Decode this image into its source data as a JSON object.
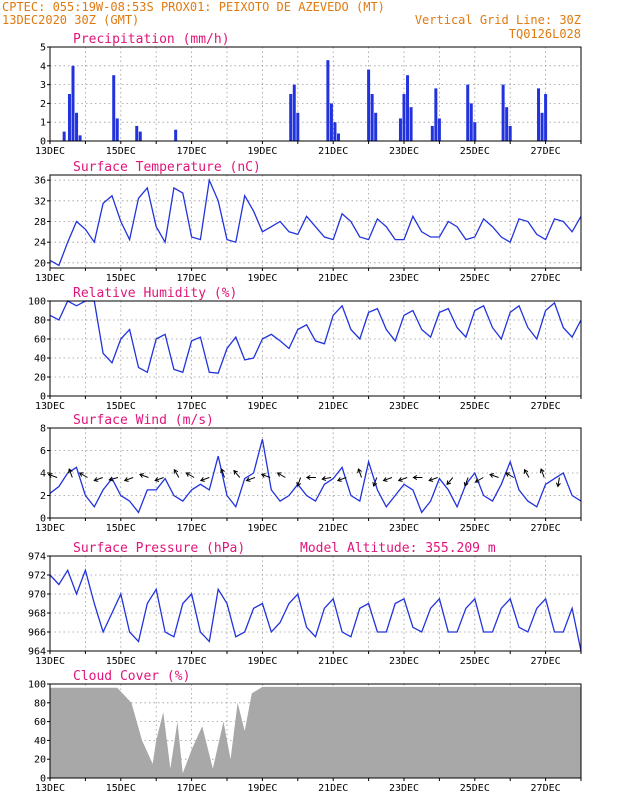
{
  "header": {
    "line1_left": "CPTEC:  055:19W-08:53S  PROX01: PEIXOTO DE AZEVEDO (MT)",
    "line2_left": "13DEC2020 30Z (GMT)",
    "line2_right": "Vertical Grid Line: 30Z",
    "line3_right": "TQ0126L028"
  },
  "colors": {
    "header": "#e07a10",
    "panel_title": "#e0157a",
    "series": "#2233dd",
    "cloud": "#a8a8a8",
    "grid": "#9a9a9a"
  },
  "x_axis": {
    "labels": [
      "13DEC",
      "15DEC",
      "17DEC",
      "19DEC",
      "21DEC",
      "23DEC",
      "25DEC",
      "27DEC"
    ],
    "day_ticks": 15
  },
  "chart_data": [
    {
      "id": "precip",
      "type": "bar",
      "title": "Precipitation (mm/h)",
      "ylim": [
        0,
        5
      ],
      "yticks": [
        "0",
        "1",
        "2",
        "3",
        "4",
        "5"
      ],
      "x": [
        0.4,
        0.55,
        0.65,
        0.75,
        0.85,
        1.8,
        1.9,
        2.45,
        2.55,
        3.55,
        6.8,
        6.9,
        7.0,
        7.85,
        7.95,
        8.05,
        8.15,
        9.0,
        9.1,
        9.2,
        9.9,
        10.0,
        10.1,
        10.2,
        10.8,
        10.9,
        11.0,
        11.8,
        11.9,
        12.0,
        12.8,
        12.9,
        13.0,
        13.8,
        13.9,
        14.0
      ],
      "values": [
        0.5,
        2.5,
        4.0,
        1.5,
        0.3,
        3.5,
        1.2,
        0.8,
        0.5,
        0.6,
        2.5,
        3.0,
        1.5,
        4.3,
        2.0,
        1.0,
        0.4,
        3.8,
        2.5,
        1.5,
        1.2,
        2.5,
        3.5,
        1.8,
        0.8,
        2.8,
        1.2,
        3.0,
        2.0,
        1.0,
        3.0,
        1.8,
        0.8,
        2.8,
        1.5,
        2.5
      ]
    },
    {
      "id": "temp",
      "type": "line",
      "title": "Surface Temperature (nC)",
      "ylim": [
        19,
        37
      ],
      "yticks": [
        "20",
        "24",
        "28",
        "32",
        "36"
      ],
      "x": [
        0,
        0.25,
        0.5,
        0.75,
        1.0,
        1.25,
        1.5,
        1.75,
        2.0,
        2.25,
        2.5,
        2.75,
        3.0,
        3.25,
        3.5,
        3.75,
        4.0,
        4.25,
        4.5,
        4.75,
        5.0,
        5.25,
        5.5,
        5.75,
        6.0,
        6.25,
        6.5,
        6.75,
        7.0,
        7.25,
        7.5,
        7.75,
        8.0,
        8.25,
        8.5,
        8.75,
        9.0,
        9.25,
        9.5,
        9.75,
        10.0,
        10.25,
        10.5,
        10.75,
        11.0,
        11.25,
        11.5,
        11.75,
        12.0,
        12.25,
        12.5,
        12.75,
        13.0,
        13.25,
        13.5,
        13.75,
        14.0,
        14.25,
        14.5,
        14.75,
        15.0
      ],
      "values": [
        20.5,
        19.5,
        24.0,
        28.0,
        26.5,
        24.0,
        31.5,
        33.0,
        28.0,
        24.5,
        32.5,
        34.5,
        27.0,
        24.0,
        34.5,
        33.5,
        25.0,
        24.5,
        36.0,
        32.0,
        24.5,
        24.0,
        33.0,
        30.0,
        26.0,
        27.0,
        28.0,
        26.0,
        25.5,
        29.0,
        27.0,
        25.0,
        24.5,
        29.5,
        28.0,
        25.0,
        24.5,
        28.5,
        27.0,
        24.5,
        24.5,
        29.0,
        26.0,
        25.0,
        25.0,
        28.0,
        27.0,
        24.5,
        25.0,
        28.5,
        27.0,
        25.0,
        24.0,
        28.5,
        28.0,
        25.5,
        24.5,
        28.5,
        28.0,
        26.0,
        29.0
      ]
    },
    {
      "id": "rh",
      "type": "line",
      "title": "Relative Humidity (%)",
      "ylim": [
        0,
        100
      ],
      "yticks": [
        "0",
        "20",
        "40",
        "60",
        "80",
        "100"
      ],
      "x": [
        0,
        0.25,
        0.5,
        0.75,
        1.0,
        1.25,
        1.5,
        1.75,
        2.0,
        2.25,
        2.5,
        2.75,
        3.0,
        3.25,
        3.5,
        3.75,
        4.0,
        4.25,
        4.5,
        4.75,
        5.0,
        5.25,
        5.5,
        5.75,
        6.0,
        6.25,
        6.5,
        6.75,
        7.0,
        7.25,
        7.5,
        7.75,
        8.0,
        8.25,
        8.5,
        8.75,
        9.0,
        9.25,
        9.5,
        9.75,
        10.0,
        10.25,
        10.5,
        10.75,
        11.0,
        11.25,
        11.5,
        11.75,
        12.0,
        12.25,
        12.5,
        12.75,
        13.0,
        13.25,
        13.5,
        13.75,
        14.0,
        14.25,
        14.5,
        14.75,
        15.0
      ],
      "values": [
        85,
        80,
        100,
        95,
        100,
        100,
        45,
        35,
        60,
        70,
        30,
        25,
        60,
        65,
        28,
        25,
        58,
        62,
        25,
        24,
        50,
        62,
        38,
        40,
        60,
        65,
        58,
        50,
        70,
        75,
        58,
        55,
        85,
        95,
        70,
        60,
        88,
        92,
        70,
        58,
        85,
        90,
        70,
        62,
        88,
        92,
        72,
        62,
        90,
        95,
        72,
        60,
        88,
        95,
        72,
        60,
        90,
        98,
        72,
        62,
        80
      ]
    },
    {
      "id": "wind",
      "type": "line",
      "title": "Surface Wind (m/s)",
      "ylim": [
        0,
        8
      ],
      "yticks": [
        "0",
        "2",
        "4",
        "6",
        "8"
      ],
      "x": [
        0,
        0.25,
        0.5,
        0.75,
        1.0,
        1.25,
        1.5,
        1.75,
        2.0,
        2.25,
        2.5,
        2.75,
        3.0,
        3.25,
        3.5,
        3.75,
        4.0,
        4.25,
        4.5,
        4.75,
        5.0,
        5.25,
        5.5,
        5.75,
        6.0,
        6.25,
        6.5,
        6.75,
        7.0,
        7.25,
        7.5,
        7.75,
        8.0,
        8.25,
        8.5,
        8.75,
        9.0,
        9.25,
        9.5,
        9.75,
        10.0,
        10.25,
        10.5,
        10.75,
        11.0,
        11.25,
        11.5,
        11.75,
        12.0,
        12.25,
        12.5,
        12.75,
        13.0,
        13.25,
        13.5,
        13.75,
        14.0,
        14.25,
        14.5,
        14.75,
        15.0
      ],
      "values": [
        2.2,
        2.8,
        4.0,
        4.5,
        2.0,
        1.0,
        2.5,
        3.5,
        2.0,
        1.5,
        0.5,
        2.5,
        2.5,
        3.5,
        2.0,
        1.5,
        2.5,
        3.0,
        2.5,
        5.5,
        2.0,
        1.0,
        3.5,
        4.0,
        7.0,
        2.5,
        1.5,
        2.0,
        3.0,
        2.0,
        1.5,
        3.0,
        3.5,
        4.5,
        2.0,
        1.5,
        5.0,
        2.5,
        1.0,
        2.0,
        3.0,
        2.5,
        0.5,
        1.5,
        3.5,
        2.5,
        1.0,
        3.0,
        4.0,
        2.0,
        1.5,
        3.0,
        5.0,
        2.5,
        1.5,
        1.0,
        3.0,
        3.5,
        4.0,
        2.0,
        1.5
      ]
    },
    {
      "id": "pressure",
      "type": "line",
      "title": "Surface Pressure (hPa)",
      "annotation": "Model Altitude: 355.209 m",
      "ylim": [
        964,
        974
      ],
      "yticks": [
        "964",
        "966",
        "968",
        "970",
        "972",
        "974"
      ],
      "x": [
        0,
        0.25,
        0.5,
        0.75,
        1.0,
        1.25,
        1.5,
        1.75,
        2.0,
        2.25,
        2.5,
        2.75,
        3.0,
        3.25,
        3.5,
        3.75,
        4.0,
        4.25,
        4.5,
        4.75,
        5.0,
        5.25,
        5.5,
        5.75,
        6.0,
        6.25,
        6.5,
        6.75,
        7.0,
        7.25,
        7.5,
        7.75,
        8.0,
        8.25,
        8.5,
        8.75,
        9.0,
        9.25,
        9.5,
        9.75,
        10.0,
        10.25,
        10.5,
        10.75,
        11.0,
        11.25,
        11.5,
        11.75,
        12.0,
        12.25,
        12.5,
        12.75,
        13.0,
        13.25,
        13.5,
        13.75,
        14.0,
        14.25,
        14.5,
        14.75,
        15.0
      ],
      "values": [
        972,
        971,
        972.5,
        970,
        972.5,
        969,
        966,
        968,
        970,
        966,
        965,
        969,
        970.5,
        966,
        965.5,
        969,
        970,
        966,
        965,
        970.5,
        969,
        965.5,
        966,
        968.5,
        969,
        966,
        967,
        969,
        970,
        966.5,
        965.5,
        968.5,
        969.5,
        966,
        965.5,
        968.5,
        969,
        966,
        966,
        969,
        969.5,
        966.5,
        966,
        968.5,
        969.5,
        966,
        966,
        968.5,
        969.5,
        966,
        966,
        968.5,
        969.5,
        966.5,
        966,
        968.5,
        969.5,
        966,
        966,
        968.5,
        964
      ]
    },
    {
      "id": "cloud",
      "type": "area",
      "title": "Cloud Cover (%)",
      "ylim": [
        0,
        100
      ],
      "yticks": [
        "0",
        "20",
        "40",
        "60",
        "80",
        "100"
      ],
      "x": [
        0,
        1.0,
        1.9,
        2.0,
        2.3,
        2.6,
        2.9,
        3.0,
        3.2,
        3.4,
        3.6,
        3.75,
        4.0,
        4.3,
        4.6,
        4.9,
        5.1,
        5.3,
        5.5,
        5.7,
        6.0,
        15.0
      ],
      "values": [
        96,
        96,
        96,
        92,
        80,
        40,
        15,
        40,
        70,
        10,
        60,
        5,
        30,
        55,
        10,
        60,
        20,
        80,
        50,
        90,
        97,
        97
      ]
    }
  ]
}
